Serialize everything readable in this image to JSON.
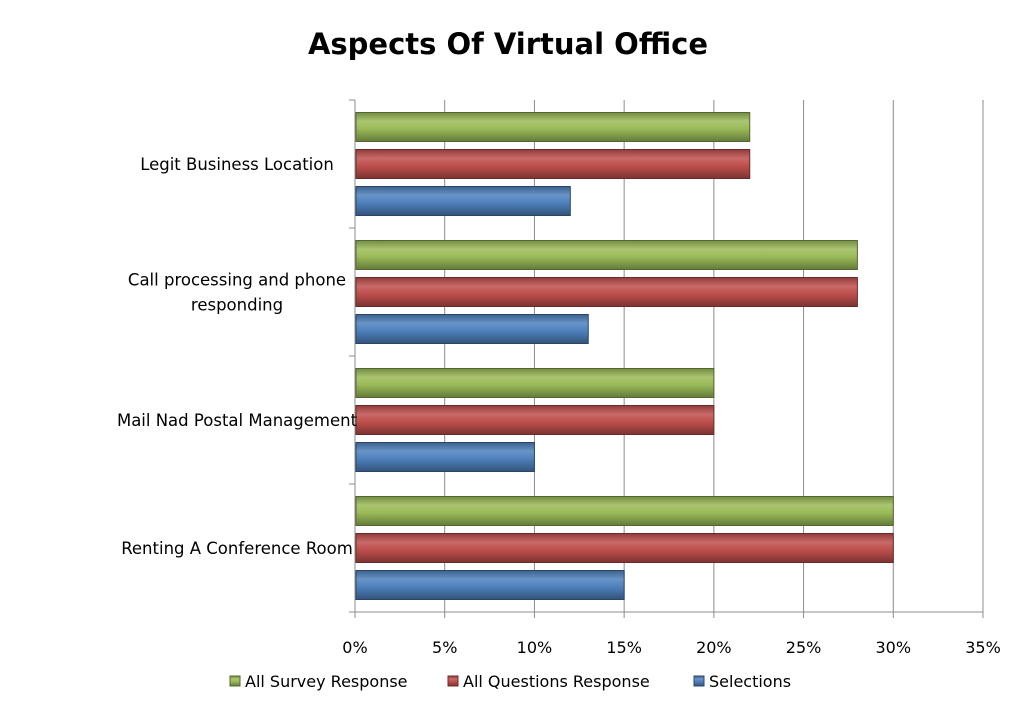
{
  "chart_data": {
    "type": "bar",
    "orientation": "horizontal",
    "title": "Aspects Of Virtual Office",
    "xlabel": "",
    "ylabel": "",
    "xlim": [
      0,
      35
    ],
    "x_ticks": [
      "0%",
      "5%",
      "10%",
      "15%",
      "20%",
      "25%",
      "30%",
      "35%"
    ],
    "x_tick_values": [
      0,
      5,
      10,
      15,
      20,
      25,
      30,
      35
    ],
    "grid": true,
    "legend_position": "bottom",
    "categories": [
      [
        "Legit Business Location"
      ],
      [
        "Call processing and phone",
        "responding"
      ],
      [
        "Mail Nad Postal Management"
      ],
      [
        "Renting A Conference Room"
      ]
    ],
    "series": [
      {
        "name": "All Survey Response",
        "color": "#9bbb59",
        "values": [
          22,
          28,
          20,
          30
        ]
      },
      {
        "name": "All Questions Response",
        "color": "#c0504d",
        "values": [
          22,
          28,
          20,
          30
        ]
      },
      {
        "name": "Selections",
        "color": "#4f81bd",
        "values": [
          12,
          13,
          10,
          15
        ]
      }
    ]
  }
}
